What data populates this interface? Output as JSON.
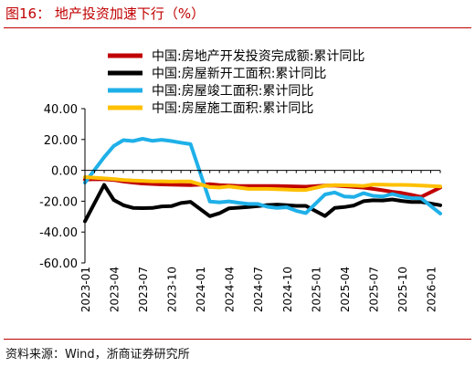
{
  "header": {
    "title": "图16： 地产投资加速下行（%）"
  },
  "footer": {
    "source": "资料来源：Wind，浙商证券研究所"
  },
  "chart_data": {
    "type": "line",
    "title": "",
    "xlabel": "",
    "ylabel": "",
    "ylim": [
      -60,
      40
    ],
    "yticks": [
      "40.00",
      "20.00",
      "0.00",
      "-20.00",
      "-40.00",
      "-60.00"
    ],
    "xticks": [
      "2023-01",
      "2023-04",
      "2023-07",
      "2023-10",
      "2024-01",
      "2024-04",
      "2024-07",
      "2024-10",
      "2025-01",
      "2025-04",
      "2025-07",
      "2025-10",
      "2026-01"
    ],
    "x": [
      "2023-01",
      "2023-02",
      "2023-03",
      "2023-04",
      "2023-05",
      "2023-06",
      "2023-07",
      "2023-08",
      "2023-09",
      "2023-10",
      "2023-11",
      "2023-12",
      "2024-01",
      "2024-02",
      "2024-03",
      "2024-04",
      "2024-05",
      "2024-06",
      "2024-07",
      "2024-08",
      "2024-09",
      "2024-10",
      "2024-11",
      "2024-12",
      "2025-01",
      "2025-02",
      "2025-03",
      "2025-04",
      "2025-05",
      "2025-06",
      "2025-07",
      "2025-08",
      "2025-09",
      "2025-10",
      "2025-11",
      "2025-12",
      "2026-01",
      "2026-02"
    ],
    "grid": false,
    "legend_position": "top",
    "series": [
      {
        "name": "中国:房地产开发投资完成额:累计同比",
        "color": "#c00000",
        "values": [
          -6,
          -5.7,
          -5.8,
          -6.2,
          -7.2,
          -7.9,
          -8.5,
          -8.8,
          -9.1,
          -9.3,
          -9.4,
          -9.6,
          null,
          -9,
          -9.5,
          -9.8,
          -10.1,
          -10.1,
          -10.2,
          -10.2,
          -10.1,
          -10.3,
          -10.4,
          -10.6,
          null,
          -9.8,
          -9.9,
          -10.3,
          -10.7,
          -11.2,
          -12,
          -12.9,
          -13.9,
          -14.7,
          -15.9,
          -17.2,
          null,
          -11.1
        ]
      },
      {
        "name": "中国:房屋新开工面积:累计同比",
        "color": "#000000",
        "values": [
          -33,
          null,
          -9.4,
          -19.2,
          -22.6,
          -24.3,
          -24.5,
          -24.4,
          -23.4,
          -23.2,
          -21.2,
          -20.4,
          null,
          -29.7,
          -27.8,
          -24.6,
          -24.2,
          -23.7,
          -23.2,
          -22.5,
          -22.2,
          -22.6,
          -23,
          -23,
          null,
          -29.6,
          -24.4,
          -23.8,
          -22.8,
          -20,
          -19.4,
          -19.5,
          -18.9,
          -19.8,
          -20.5,
          -20.4,
          null,
          -22.6
        ]
      },
      {
        "name": "中国:房屋竣工面积:累计同比",
        "color": "#1fb0e8",
        "values": [
          -8,
          null,
          8.5,
          15.8,
          19.6,
          19,
          20.5,
          19.2,
          19.8,
          19,
          17.9,
          17,
          null,
          -20.2,
          -20.7,
          -20.1,
          -21,
          -21.8,
          -21.8,
          -23.6,
          -24.4,
          -23.9,
          -26.2,
          -27.7,
          null,
          -15.6,
          -14.3,
          -16.9,
          -17.3,
          -14.8,
          -16.5,
          -17,
          -15.3,
          -16.9,
          -18,
          -18.1,
          null,
          -28
        ]
      },
      {
        "name": "中国:房屋施工面积:累计同比",
        "color": "#ffc000",
        "values": [
          -4.4,
          null,
          -5.2,
          -5.6,
          -6.2,
          -6.6,
          -6.8,
          -7.1,
          -7.1,
          -7.3,
          -7.2,
          -7.2,
          null,
          -10.8,
          -11.1,
          -10.5,
          -11.2,
          -12,
          -12,
          -12,
          -12.2,
          -12.4,
          -12.7,
          -12.7,
          null,
          -10,
          -9.5,
          -9.7,
          -9.9,
          -10.1,
          -9.2,
          -9.3,
          -9.4,
          -9.4,
          -9.6,
          -9.9,
          null,
          -10.5
        ]
      }
    ]
  }
}
